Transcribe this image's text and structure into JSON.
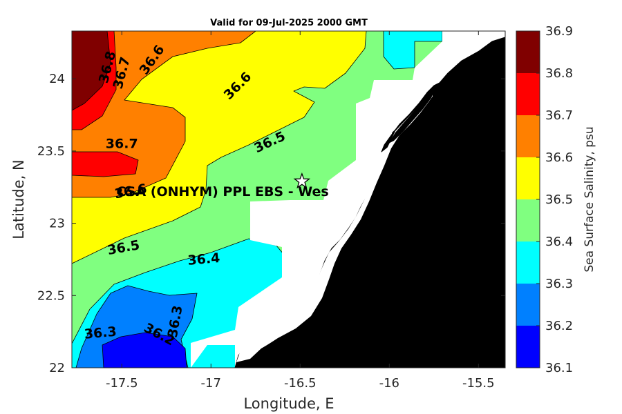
{
  "chart_data": {
    "type": "heatmap",
    "subtype": "filled-contour-map",
    "title": "Valid for 09-Jul-2025 2000 GMT",
    "xlabel": "Longitude, E",
    "ylabel": "Latitude, N",
    "xlim": [
      -17.78,
      -15.35
    ],
    "ylim": [
      22.0,
      24.33
    ],
    "xticks": [
      -17.5,
      -17,
      -16.5,
      -16,
      -15.5
    ],
    "xtick_labels": [
      "-17.5",
      "-17",
      "-16.5",
      "-16",
      "-15.5"
    ],
    "yticks": [
      22,
      22.5,
      23,
      23.5,
      24
    ],
    "ytick_labels": [
      "22",
      "22.5",
      "23",
      "23.5",
      "24"
    ],
    "colorbar": {
      "label": "Sea Surface Salinity, psu",
      "min": 36.1,
      "max": 36.9,
      "ticks": [
        36.1,
        36.2,
        36.3,
        36.4,
        36.5,
        36.6,
        36.7,
        36.8,
        36.9
      ],
      "tick_labels": [
        "36.1",
        "36.2",
        "36.3",
        "36.4",
        "36.5",
        "36.6",
        "36.7",
        "36.8",
        "36.9"
      ],
      "colors": [
        "#0000ff",
        "#0080ff",
        "#00ffff",
        "#80ff80",
        "#ffff00",
        "#ff8000",
        "#ff0000",
        "#800000"
      ]
    },
    "levels": [
      36.1,
      36.2,
      36.3,
      36.4,
      36.5,
      36.6,
      36.7,
      36.8,
      36.9
    ],
    "contour_labels": [
      {
        "text": "36.8",
        "lon": -17.58,
        "lat": 24.08,
        "angle": -75
      },
      {
        "text": "36.7",
        "lon": -17.5,
        "lat": 24.04,
        "angle": -75
      },
      {
        "text": "36.6",
        "lon": -17.33,
        "lat": 24.13,
        "angle": -55
      },
      {
        "text": "36.6",
        "lon": -16.85,
        "lat": 23.95,
        "angle": -45
      },
      {
        "text": "36.7",
        "lon": -17.5,
        "lat": 23.55,
        "angle": 0
      },
      {
        "text": "36.5",
        "lon": -16.67,
        "lat": 23.56,
        "angle": -25
      },
      {
        "text": "36.6",
        "lon": -17.45,
        "lat": 23.22,
        "angle": -10
      },
      {
        "text": "36.5",
        "lon": -17.49,
        "lat": 22.83,
        "angle": -10
      },
      {
        "text": "36.4",
        "lon": -17.04,
        "lat": 22.75,
        "angle": -5
      },
      {
        "text": "36.3",
        "lon": -17.62,
        "lat": 22.24,
        "angle": -5
      },
      {
        "text": "36.2",
        "lon": -17.29,
        "lat": 22.23,
        "angle": 28
      },
      {
        "text": "36.3",
        "lon": -17.2,
        "lat": 22.32,
        "angle": -80
      }
    ],
    "site": {
      "label": "CSA (ONHYM) PPL EBS  - Wes",
      "lon": -16.49,
      "lat": 23.29
    }
  }
}
